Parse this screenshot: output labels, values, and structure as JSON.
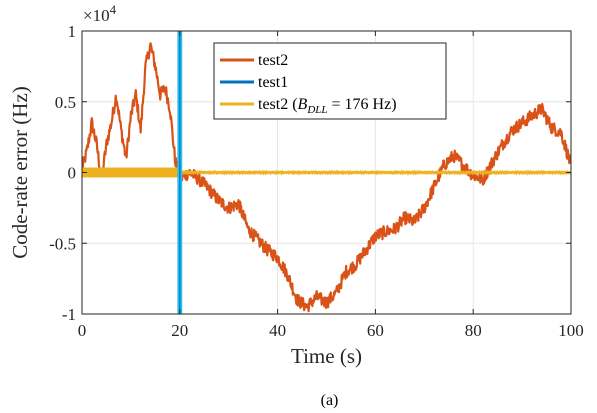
{
  "chart_data": {
    "type": "line",
    "title": "",
    "caption": "(a)",
    "xlabel": "Time (s)",
    "ylabel": "Code-rate error (Hz)",
    "y_multiplier": "×10^4",
    "xlim": [
      0,
      100
    ],
    "ylim": [
      -1,
      1
    ],
    "xticks": [
      0,
      20,
      40,
      60,
      80,
      100
    ],
    "xtick_labels": [
      "0",
      "20",
      "40",
      "60",
      "80",
      "100"
    ],
    "yticks": [
      -1,
      -0.5,
      0,
      0.5,
      1
    ],
    "ytick_labels": [
      "-1",
      "-0.5",
      "0",
      "0.5",
      "1"
    ],
    "grid": true,
    "legend_position": "top-center",
    "series": [
      {
        "name": "test2",
        "color": "#D95319",
        "x": [
          0,
          1,
          2,
          3,
          4,
          5,
          6,
          7,
          8,
          9,
          10,
          11,
          12,
          13,
          14,
          15,
          16,
          17,
          18,
          19,
          20,
          21,
          22,
          24,
          26,
          28,
          30,
          32,
          34,
          36,
          38,
          40,
          42,
          44,
          46,
          48,
          50,
          52,
          54,
          56,
          58,
          60,
          62,
          64,
          66,
          68,
          70,
          72,
          74,
          76,
          78,
          80,
          82,
          84,
          86,
          88,
          90,
          92,
          94,
          96,
          98,
          100
        ],
        "y": [
          0.02,
          0.15,
          0.35,
          0.2,
          -0.05,
          0.2,
          0.35,
          0.55,
          0.3,
          0.1,
          0.4,
          0.55,
          0.3,
          0.75,
          0.9,
          0.75,
          0.55,
          0.6,
          0.45,
          0.1,
          -0.05,
          -0.02,
          0.0,
          -0.05,
          -0.12,
          -0.2,
          -0.25,
          -0.22,
          -0.4,
          -0.48,
          -0.55,
          -0.6,
          -0.72,
          -0.9,
          -0.95,
          -0.88,
          -0.92,
          -0.85,
          -0.7,
          -0.65,
          -0.55,
          -0.45,
          -0.42,
          -0.4,
          -0.32,
          -0.35,
          -0.25,
          -0.1,
          0.05,
          0.12,
          0.05,
          -0.02,
          -0.05,
          0.08,
          0.2,
          0.3,
          0.35,
          0.4,
          0.45,
          0.32,
          0.28,
          0.05
        ]
      },
      {
        "name": "test1",
        "color": "#0072BD",
        "draw_color": "#2ABFEA",
        "x": [
          19.5,
          19.5,
          20.5,
          20.5
        ],
        "y": [
          -1,
          1,
          1,
          -1
        ]
      },
      {
        "name": "test2 (B_DLL = 176 Hz)",
        "name_parts": [
          "test2 (",
          "B",
          "DLL",
          " = 176 Hz)"
        ],
        "color": "#EDB120",
        "x": [
          0,
          20,
          20,
          100
        ],
        "y": [
          0.0,
          0.0,
          0.0,
          0.0
        ],
        "band_halfwidth": [
          0.035,
          0.008
        ]
      }
    ]
  }
}
